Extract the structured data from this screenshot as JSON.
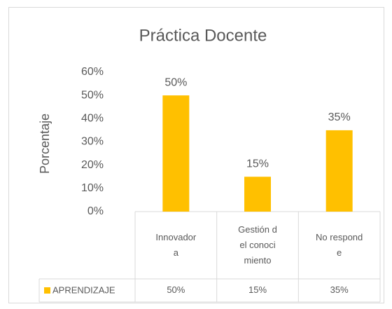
{
  "chart_data": {
    "type": "bar",
    "title": "Práctica Docente",
    "y_label": "Porcentaje",
    "categories": [
      "Innovadora",
      "Gestión del conocimiento",
      "No responde"
    ],
    "series": [
      {
        "name": "APRENDIZAJE",
        "color": "#FFC000",
        "values": [
          50,
          15,
          35
        ],
        "value_labels": [
          "50%",
          "15%",
          "35%"
        ]
      }
    ],
    "ylim": [
      0,
      60
    ],
    "yticks": [
      {
        "value": 0,
        "label": "0%"
      },
      {
        "value": 10,
        "label": "10%"
      },
      {
        "value": 20,
        "label": "20%"
      },
      {
        "value": 30,
        "label": "30%"
      },
      {
        "value": 40,
        "label": "40%"
      },
      {
        "value": 50,
        "label": "50%"
      },
      {
        "value": 60,
        "label": "60%"
      }
    ],
    "grid": false,
    "data_table": true
  }
}
